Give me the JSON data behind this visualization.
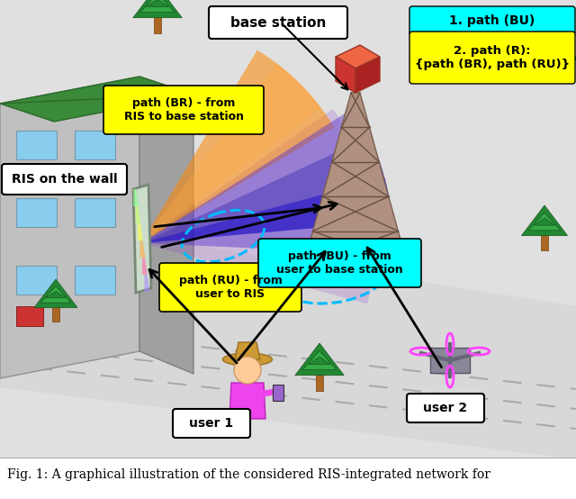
{
  "fig_width": 6.4,
  "fig_height": 5.54,
  "dpi": 100,
  "caption": "Fig. 1: A graphical illustration of the considered RIS-integrated network for",
  "caption_fontsize": 10,
  "label_path_BR": "path (BR) - from\nRIS to base station",
  "label_path_RU": "path (RU) - from\nuser to RIS",
  "label_path_BU": "path (BU) - from\nuser to base station",
  "label_RIS": "RIS on the wall",
  "label_BS": "base station",
  "label_user1": "user 1",
  "label_user2": "user 2",
  "label_path1": "1. path (BU)",
  "label_path2": "2. path (R):\n{path (BR), path (RU)}",
  "color_path_BR_box": "#ffff00",
  "color_path_RU_box": "#ffff00",
  "color_path_BU_box": "#00ffff",
  "color_path1_box": "#00ffff",
  "color_path2_box": "#ffff00",
  "bg_color": "#e0e0e0",
  "road_color": "#d4d4d4",
  "building_front": "#b8b8b8",
  "building_side": "#989898",
  "building_roof": "#3a7a3a",
  "building_edge": "#6a9a6a",
  "win_color": "#88ccee",
  "ris_colors": [
    "#88ff88",
    "#ffff88",
    "#ff88ff",
    "#88ffff",
    "#ffaa88",
    "#aaaaff"
  ],
  "tower_body": "#b09090",
  "tower_edge": "#806060",
  "tower_top_front": "#dd4444",
  "tower_top_side": "#aa2222",
  "tower_top_top": "#ee6655",
  "tree_trunk": "#aa6622",
  "tree_top1": "#228833",
  "tree_top2": "#33aa44",
  "person_body": "#ee44ee",
  "person_head": "#ffcc99",
  "person_hat": "#cc9933",
  "drone_body": "#888899",
  "drone_prop": "#ff44ff"
}
